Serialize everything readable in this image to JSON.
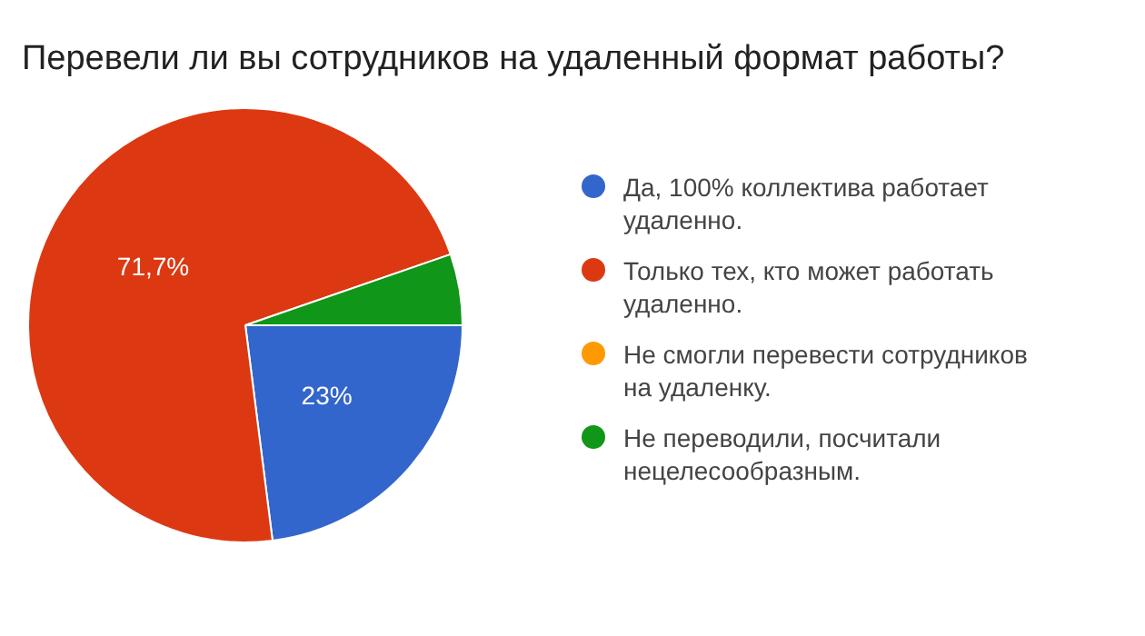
{
  "chart_data": {
    "type": "pie",
    "title": "Перевели ли вы сотрудников на удаленный формат работы?",
    "categories": [
      "Да, 100% коллектива работает удаленно.",
      "Только тех, кто может работать удаленно.",
      "Не смогли перевести сотрудников на удаленку.",
      "Не переводили, посчитали нецелесообразным."
    ],
    "values": [
      23,
      71.7,
      0,
      5.3
    ],
    "colors": [
      "#3366cc",
      "#dc3912",
      "#ff9900",
      "#109618"
    ],
    "value_labels": [
      "23%",
      "71,7%",
      null,
      null
    ],
    "legend": "right"
  }
}
